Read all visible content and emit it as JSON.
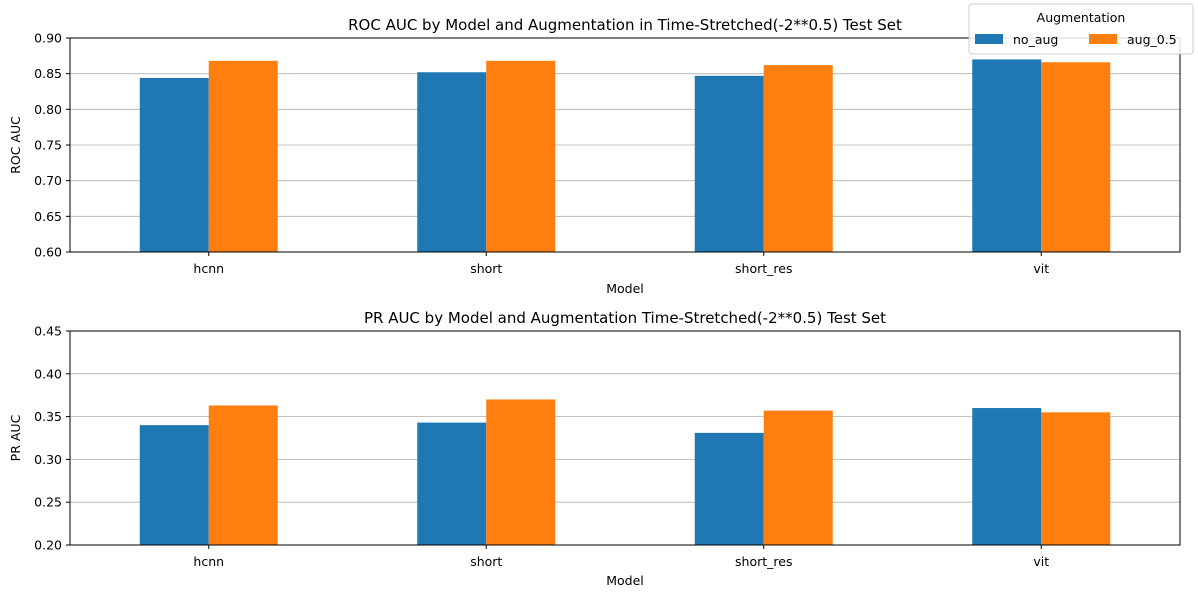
{
  "legend": {
    "title": "Augmentation",
    "placement": "top-right"
  },
  "colors": {
    "no_aug": "#1f77b4",
    "aug_0.5": "#ff7f0e",
    "grid": "#b0b0b0",
    "axis": "#000000"
  },
  "chart_data": [
    {
      "type": "bar",
      "title": "ROC AUC by Model and Augmentation in Time-Stretched(-2**0.5) Test Set",
      "xlabel": "Model",
      "ylabel": "ROC AUC",
      "categories": [
        "hcnn",
        "short",
        "short_res",
        "vit"
      ],
      "series": [
        {
          "name": "no_aug",
          "values": [
            0.844,
            0.852,
            0.847,
            0.87
          ]
        },
        {
          "name": "aug_0.5",
          "values": [
            0.868,
            0.868,
            0.862,
            0.866
          ]
        }
      ],
      "ylim": [
        0.6,
        0.9
      ],
      "yticks": [
        "0.60",
        "0.65",
        "0.70",
        "0.75",
        "0.80",
        "0.85",
        "0.90"
      ],
      "grid": "y"
    },
    {
      "type": "bar",
      "title": "PR AUC by Model and Augmentation Time-Stretched(-2**0.5) Test Set",
      "xlabel": "Model",
      "ylabel": "PR AUC",
      "categories": [
        "hcnn",
        "short",
        "short_res",
        "vit"
      ],
      "series": [
        {
          "name": "no_aug",
          "values": [
            0.34,
            0.343,
            0.331,
            0.36
          ]
        },
        {
          "name": "aug_0.5",
          "values": [
            0.363,
            0.37,
            0.357,
            0.355
          ]
        }
      ],
      "ylim": [
        0.2,
        0.45
      ],
      "yticks": [
        "0.20",
        "0.25",
        "0.30",
        "0.35",
        "0.40",
        "0.45"
      ],
      "grid": "y"
    }
  ]
}
